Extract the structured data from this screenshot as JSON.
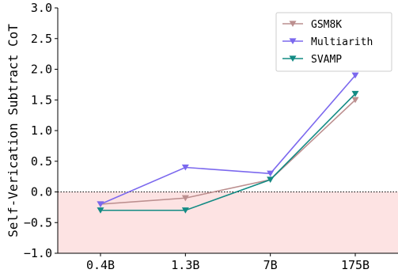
{
  "chart_data": {
    "type": "line",
    "categories": [
      "0.4B",
      "1.3B",
      "7B",
      "175B"
    ],
    "ylabel": "Self-Verication Subtract CoT",
    "xlabel": "",
    "ylim": [
      -1.0,
      3.0
    ],
    "yticks": [
      "-1.0",
      "-0.5",
      "0.0",
      "0.5",
      "1.0",
      "1.5",
      "2.0",
      "2.5",
      "3.0"
    ],
    "grid": false,
    "legend_placement": "top-right",
    "baseline": 0.0,
    "negative_region_color": "#fde3e3",
    "series": [
      {
        "name": "GSM8K",
        "color": "#bc8f8f",
        "marker": "triangle-down",
        "values": [
          -0.2,
          -0.1,
          0.2,
          1.5
        ]
      },
      {
        "name": "Multiarith",
        "color": "#7b68ee",
        "marker": "triangle-down",
        "values": [
          -0.2,
          0.4,
          0.3,
          1.9
        ]
      },
      {
        "name": "SVAMP",
        "color": "#138b84",
        "marker": "triangle-down",
        "values": [
          -0.3,
          -0.3,
          0.2,
          1.6
        ]
      }
    ]
  }
}
